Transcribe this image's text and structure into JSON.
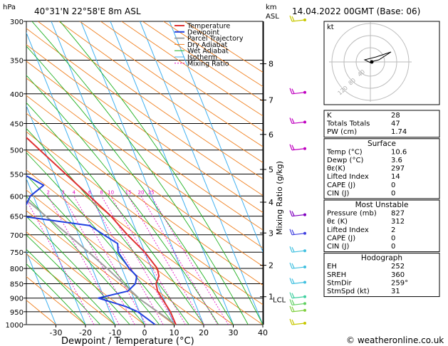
{
  "header": {
    "unit_hpa": "hPa",
    "location": "40°31'N  22°58'E  8m  ASL",
    "unit_km": "km",
    "unit_asl": "ASL",
    "datetime": "14.04.2022  00GMT  (Base: 06)"
  },
  "chart_data": {
    "type": "skewt",
    "xlabel": "Dewpoint / Temperature (°C)",
    "ylabel_right": "Mixing Ratio (g/kg)",
    "x_ticks": [
      -30,
      -20,
      -10,
      0,
      10,
      20,
      30,
      40
    ],
    "xlim": [
      -40,
      40
    ],
    "pressure_levels": [
      300,
      350,
      400,
      450,
      500,
      550,
      600,
      650,
      700,
      750,
      800,
      850,
      900,
      950,
      1000
    ],
    "km_ticks": [
      {
        "label": "8",
        "p": 355
      },
      {
        "label": "7",
        "p": 410
      },
      {
        "label": "6",
        "p": 470
      },
      {
        "label": "5",
        "p": 540
      },
      {
        "label": "4",
        "p": 615
      },
      {
        "label": "3",
        "p": 695
      },
      {
        "label": "2",
        "p": 790
      },
      {
        "label": "1",
        "p": 895
      }
    ],
    "lcl": {
      "label": "LCL",
      "p": 905
    },
    "mixing_ratio_labels": [
      "1",
      "2",
      "3",
      "4",
      "6",
      "8",
      "10",
      "15",
      "20",
      "25"
    ],
    "legend": [
      "Temperature",
      "Dewpoint",
      "Parcel Trajectory",
      "Dry Adiabat",
      "Wet Adiabat",
      "Isotherm",
      "Mixing Ratio"
    ],
    "temperature": [
      {
        "p": 1000,
        "t": 10.6
      },
      {
        "p": 950,
        "t": 10.5
      },
      {
        "p": 900,
        "t": 9.5
      },
      {
        "p": 875,
        "t": 9.0
      },
      {
        "p": 850,
        "t": 9.5
      },
      {
        "p": 825,
        "t": 11.5
      },
      {
        "p": 800,
        "t": 12.0
      },
      {
        "p": 750,
        "t": 10.0
      },
      {
        "p": 700,
        "t": 6.5
      },
      {
        "p": 650,
        "t": 3.5
      },
      {
        "p": 600,
        "t": -1.0
      },
      {
        "p": 550,
        "t": -6.0
      },
      {
        "p": 500,
        "t": -11.5
      },
      {
        "p": 450,
        "t": -17.5
      },
      {
        "p": 400,
        "t": -24.5
      },
      {
        "p": 360,
        "t": -31.0
      },
      {
        "p": 350,
        "t": -32.0
      },
      {
        "p": 300,
        "t": -41.0
      }
    ],
    "dewpoint": [
      {
        "p": 1000,
        "t": 3.6
      },
      {
        "p": 950,
        "t": -0.5
      },
      {
        "p": 930,
        "t": -4.0
      },
      {
        "p": 900,
        "t": -12.0
      },
      {
        "p": 875,
        "t": -1.0
      },
      {
        "p": 850,
        "t": 2.5
      },
      {
        "p": 825,
        "t": 4.0
      },
      {
        "p": 800,
        "t": 2.5
      },
      {
        "p": 750,
        "t": 1.0
      },
      {
        "p": 725,
        "t": 2.0
      },
      {
        "p": 700,
        "t": -1.5
      },
      {
        "p": 675,
        "t": -5.0
      },
      {
        "p": 650,
        "t": -27.0
      },
      {
        "p": 600,
        "t": -21.0
      },
      {
        "p": 575,
        "t": -15.0
      },
      {
        "p": 550,
        "t": -20.5
      },
      {
        "p": 525,
        "t": -21.5
      },
      {
        "p": 500,
        "t": -18.0
      },
      {
        "p": 475,
        "t": -19.0
      },
      {
        "p": 450,
        "t": -24.0
      },
      {
        "p": 400,
        "t": -36.5
      },
      {
        "p": 350,
        "t": -38.0
      },
      {
        "p": 320,
        "t": -44.0
      },
      {
        "p": 300,
        "t": -45.0
      }
    ],
    "parcel": [
      {
        "p": 1000,
        "t": 10.6
      },
      {
        "p": 905,
        "t": 2.0
      },
      {
        "p": 850,
        "t": -1.5
      },
      {
        "p": 800,
        "t": -5.0
      },
      {
        "p": 750,
        "t": -9.0
      },
      {
        "p": 700,
        "t": -13.5
      },
      {
        "p": 650,
        "t": -18.5
      },
      {
        "p": 600,
        "t": -24.0
      },
      {
        "p": 550,
        "t": -30.0
      },
      {
        "p": 500,
        "t": -36.5
      },
      {
        "p": 450,
        "t": -44.0
      },
      {
        "p": 400,
        "t": -52.0
      },
      {
        "p": 350,
        "t": -61.0
      },
      {
        "p": 300,
        "t": -71.0
      }
    ],
    "wind_barbs": [
      {
        "p": 300,
        "color": "#c8c800"
      },
      {
        "p": 400,
        "color": "#c000c0"
      },
      {
        "p": 450,
        "color": "#c000c0"
      },
      {
        "p": 500,
        "color": "#c000c0"
      },
      {
        "p": 650,
        "color": "#8000c0"
      },
      {
        "p": 700,
        "color": "#4040e0"
      },
      {
        "p": 750,
        "color": "#40c0e0"
      },
      {
        "p": 800,
        "color": "#40c0e0"
      },
      {
        "p": 850,
        "color": "#40c0e0"
      },
      {
        "p": 900,
        "color": "#40d0a0"
      },
      {
        "p": 925,
        "color": "#60d060"
      },
      {
        "p": 950,
        "color": "#80d040"
      },
      {
        "p": 1000,
        "color": "#c8c800"
      }
    ],
    "colors": {
      "temperature": "#e03030",
      "dewpoint": "#2040e0",
      "parcel": "#a0a0a0",
      "dry_adiabat": "#f08020",
      "wet_adiabat": "#20b020",
      "isotherm": "#40b0f0",
      "mixing_ratio": "#e000c0"
    }
  },
  "hodograph": {
    "unit": "kt",
    "ring_labels": [
      "40",
      "80",
      "120"
    ]
  },
  "indices": {
    "basic": [
      {
        "name": "K",
        "value": "28"
      },
      {
        "name": "Totals Totals",
        "value": "47"
      },
      {
        "name": "PW (cm)",
        "value": "1.74"
      }
    ],
    "surface_title": "Surface",
    "surface": [
      {
        "name": "Temp (°C)",
        "value": "10.6"
      },
      {
        "name": "Dewp (°C)",
        "value": "3.6"
      },
      {
        "name": "θε(K)",
        "value": "297"
      },
      {
        "name": "Lifted Index",
        "value": "14"
      },
      {
        "name": "CAPE (J)",
        "value": "0"
      },
      {
        "name": "CIN (J)",
        "value": "0"
      }
    ],
    "unstable_title": "Most Unstable",
    "unstable": [
      {
        "name": "Pressure (mb)",
        "value": "827"
      },
      {
        "name": "θε (K)",
        "value": "312"
      },
      {
        "name": "Lifted Index",
        "value": "2"
      },
      {
        "name": "CAPE (J)",
        "value": "0"
      },
      {
        "name": "CIN (J)",
        "value": "0"
      }
    ],
    "hodo_title": "Hodograph",
    "hodo": [
      {
        "name": "EH",
        "value": "252"
      },
      {
        "name": "SREH",
        "value": "360"
      },
      {
        "name": "StmDir",
        "value": "259°"
      },
      {
        "name": "StmSpd (kt)",
        "value": "31"
      }
    ]
  },
  "footer": {
    "copyright": "© weatheronline.co.uk"
  }
}
